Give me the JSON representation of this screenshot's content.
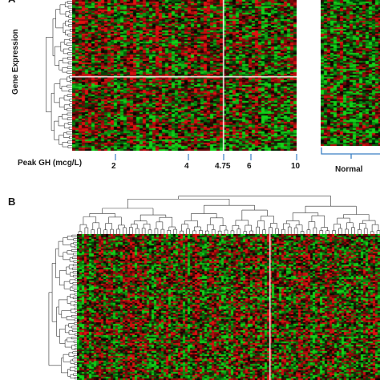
{
  "panel_a": {
    "letter": "A",
    "y_axis_label": "Gene Expression",
    "x_axis_label": "Peak GH (mcg/L)",
    "ticks": [
      {
        "value": 2,
        "label": "2"
      },
      {
        "value": 4,
        "label": "4"
      },
      {
        "value": 4.75,
        "label": "4.75"
      },
      {
        "value": 6,
        "label": "6"
      },
      {
        "value": 10,
        "label": "10"
      }
    ],
    "threshold": 4.75,
    "side_group_label": "Normal"
  },
  "panel_b": {
    "letter": "B"
  },
  "colors": {
    "high_expression": "#e01010",
    "low_expression": "#12d418",
    "neutral": "#000000",
    "bracket": "#3a7fc4",
    "divider": "#ffffff",
    "dendrogram": "#333333"
  },
  "heatmap_encoding": "red = high expression, green = low expression, black = mid"
}
